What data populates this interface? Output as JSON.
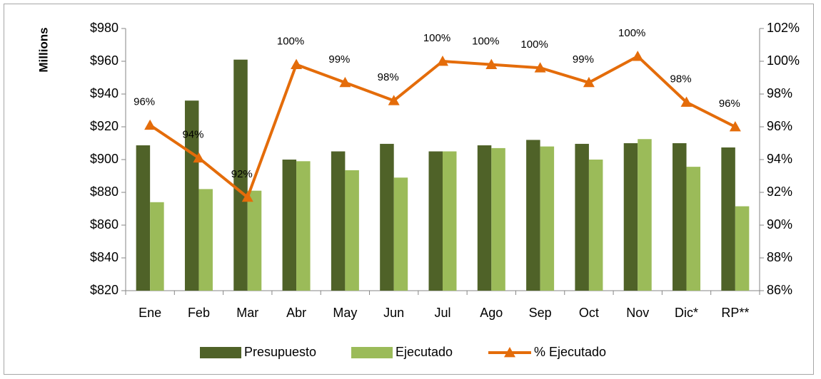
{
  "chart_data": {
    "type": "bar",
    "y_label": "Millions",
    "categories": [
      "Ene",
      "Feb",
      "Mar",
      "Abr",
      "May",
      "Jun",
      "Jul",
      "Ago",
      "Sep",
      "Oct",
      "Nov",
      "Dic*",
      "RP**"
    ],
    "series": [
      {
        "name": "Presupuesto",
        "type": "bar",
        "color": "#4f6228",
        "values": [
          908.7,
          936,
          961,
          900,
          905,
          909.6,
          905,
          908.7,
          912,
          909.6,
          910,
          910,
          907.4
        ]
      },
      {
        "name": "Ejecutado",
        "type": "bar",
        "color": "#9bbb59",
        "values": [
          874,
          882,
          881,
          899,
          893.5,
          889,
          905,
          907,
          908,
          900,
          912.5,
          895.6,
          871.5
        ]
      },
      {
        "name": "% Ejecutado",
        "type": "line",
        "axis": "y2",
        "color": "#e46c0a",
        "values": [
          96.1,
          94.1,
          91.7,
          99.8,
          98.7,
          97.6,
          100.0,
          99.8,
          99.6,
          98.7,
          100.3,
          97.5,
          96.0
        ],
        "value_labels": [
          "96%",
          "94%",
          "92%",
          "100%",
          "99%",
          "98%",
          "100%",
          "100%",
          "100%",
          "99%",
          "100%",
          "98%",
          "96%"
        ]
      }
    ],
    "ylim": [
      820,
      980
    ],
    "yticks": [
      {
        "value": 820,
        "label": "$820"
      },
      {
        "value": 840,
        "label": "$840"
      },
      {
        "value": 860,
        "label": "$860"
      },
      {
        "value": 880,
        "label": "$880"
      },
      {
        "value": 900,
        "label": "$900"
      },
      {
        "value": 920,
        "label": "$920"
      },
      {
        "value": 940,
        "label": "$940"
      },
      {
        "value": 960,
        "label": "$960"
      },
      {
        "value": 980,
        "label": "$980"
      }
    ],
    "y2lim": [
      86,
      102
    ],
    "y2ticks": [
      {
        "value": 86,
        "label": "86%"
      },
      {
        "value": 88,
        "label": "88%"
      },
      {
        "value": 90,
        "label": "90%"
      },
      {
        "value": 92,
        "label": "92%"
      },
      {
        "value": 94,
        "label": "94%"
      },
      {
        "value": 96,
        "label": "96%"
      },
      {
        "value": 98,
        "label": "98%"
      },
      {
        "value": 100,
        "label": "100%"
      },
      {
        "value": 102,
        "label": "102%"
      }
    ],
    "legend": "bottom",
    "grid": false
  }
}
